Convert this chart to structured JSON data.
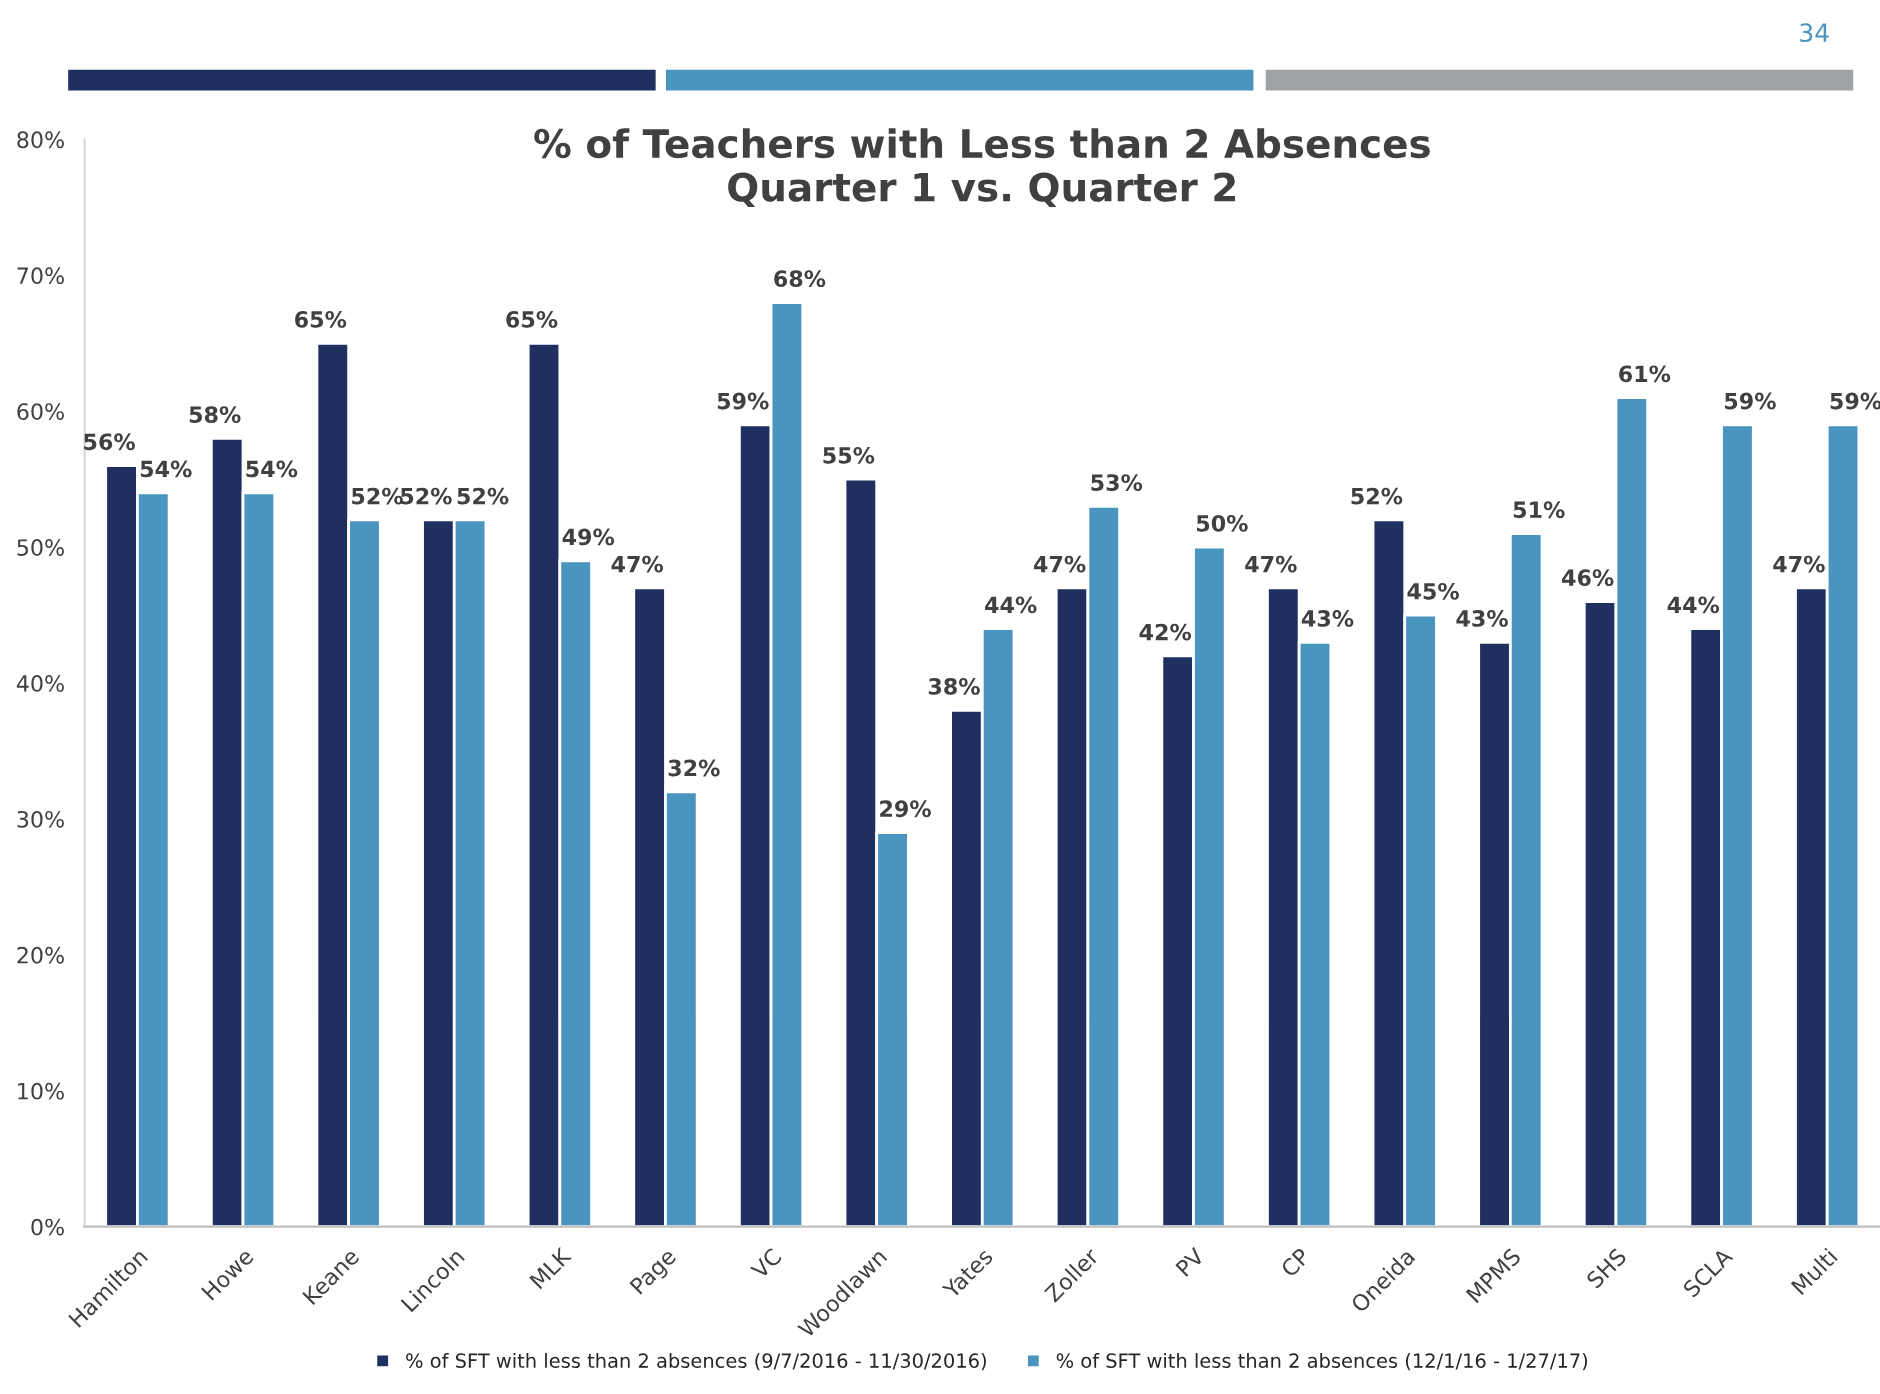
{
  "chart_data": {
    "type": "bar",
    "title": "% of Teachers with Less than 2 Absences\nQuarter 1 vs. Quarter 2",
    "categories": [
      "Hamilton",
      "Howe",
      "Keane",
      "Lincoln",
      "MLK",
      "Page",
      "VC",
      "Woodlawn",
      "Yates",
      "Zoller",
      "PV",
      "CP",
      "Oneida",
      "MPMS",
      "SHS",
      "SCLA",
      "Multi"
    ],
    "series": [
      {
        "name": "% of SFT with less than 2 absences (9/7/2016 - 11/30/2016)",
        "color": "#1f3060",
        "values": [
          56,
          58,
          65,
          52,
          65,
          47,
          59,
          55,
          38,
          47,
          42,
          47,
          52,
          43,
          46,
          44,
          47
        ],
        "value_labels": [
          "56%",
          "58%",
          "65%",
          "52%",
          "65%",
          "47%",
          "59%",
          "55%",
          "38%",
          "47%",
          "42%",
          "47%",
          "52%",
          "43%",
          "46%",
          "44%",
          "47%"
        ]
      },
      {
        "name": "% of SFT with less than 2 absences (12/1/16 - 1/27/17)",
        "color": "#4a94c0",
        "values": [
          54,
          54,
          52,
          52,
          49,
          32,
          68,
          29,
          44,
          53,
          50,
          43,
          45,
          51,
          61,
          59,
          59
        ],
        "value_labels": [
          "54%",
          "54%",
          "52%",
          "52%",
          "49%",
          "32%",
          "68%",
          "29%",
          "44%",
          "53%",
          "50%",
          "43%",
          "45%",
          "51%",
          "61%",
          "59%",
          "59%"
        ]
      }
    ],
    "ylim": [
      0,
      80
    ],
    "yticks": [
      {
        "value": 0,
        "label": "0%"
      },
      {
        "value": 10,
        "label": "10%"
      },
      {
        "value": 20,
        "label": "20%"
      },
      {
        "value": 30,
        "label": "30%"
      },
      {
        "value": 40,
        "label": "40%"
      },
      {
        "value": 50,
        "label": "50%"
      },
      {
        "value": 60,
        "label": "60%"
      },
      {
        "value": 70,
        "label": "70%"
      },
      {
        "value": 80,
        "label": "80%"
      }
    ],
    "grid": false,
    "legend": "bottom",
    "annotations": [
      "34"
    ]
  }
}
